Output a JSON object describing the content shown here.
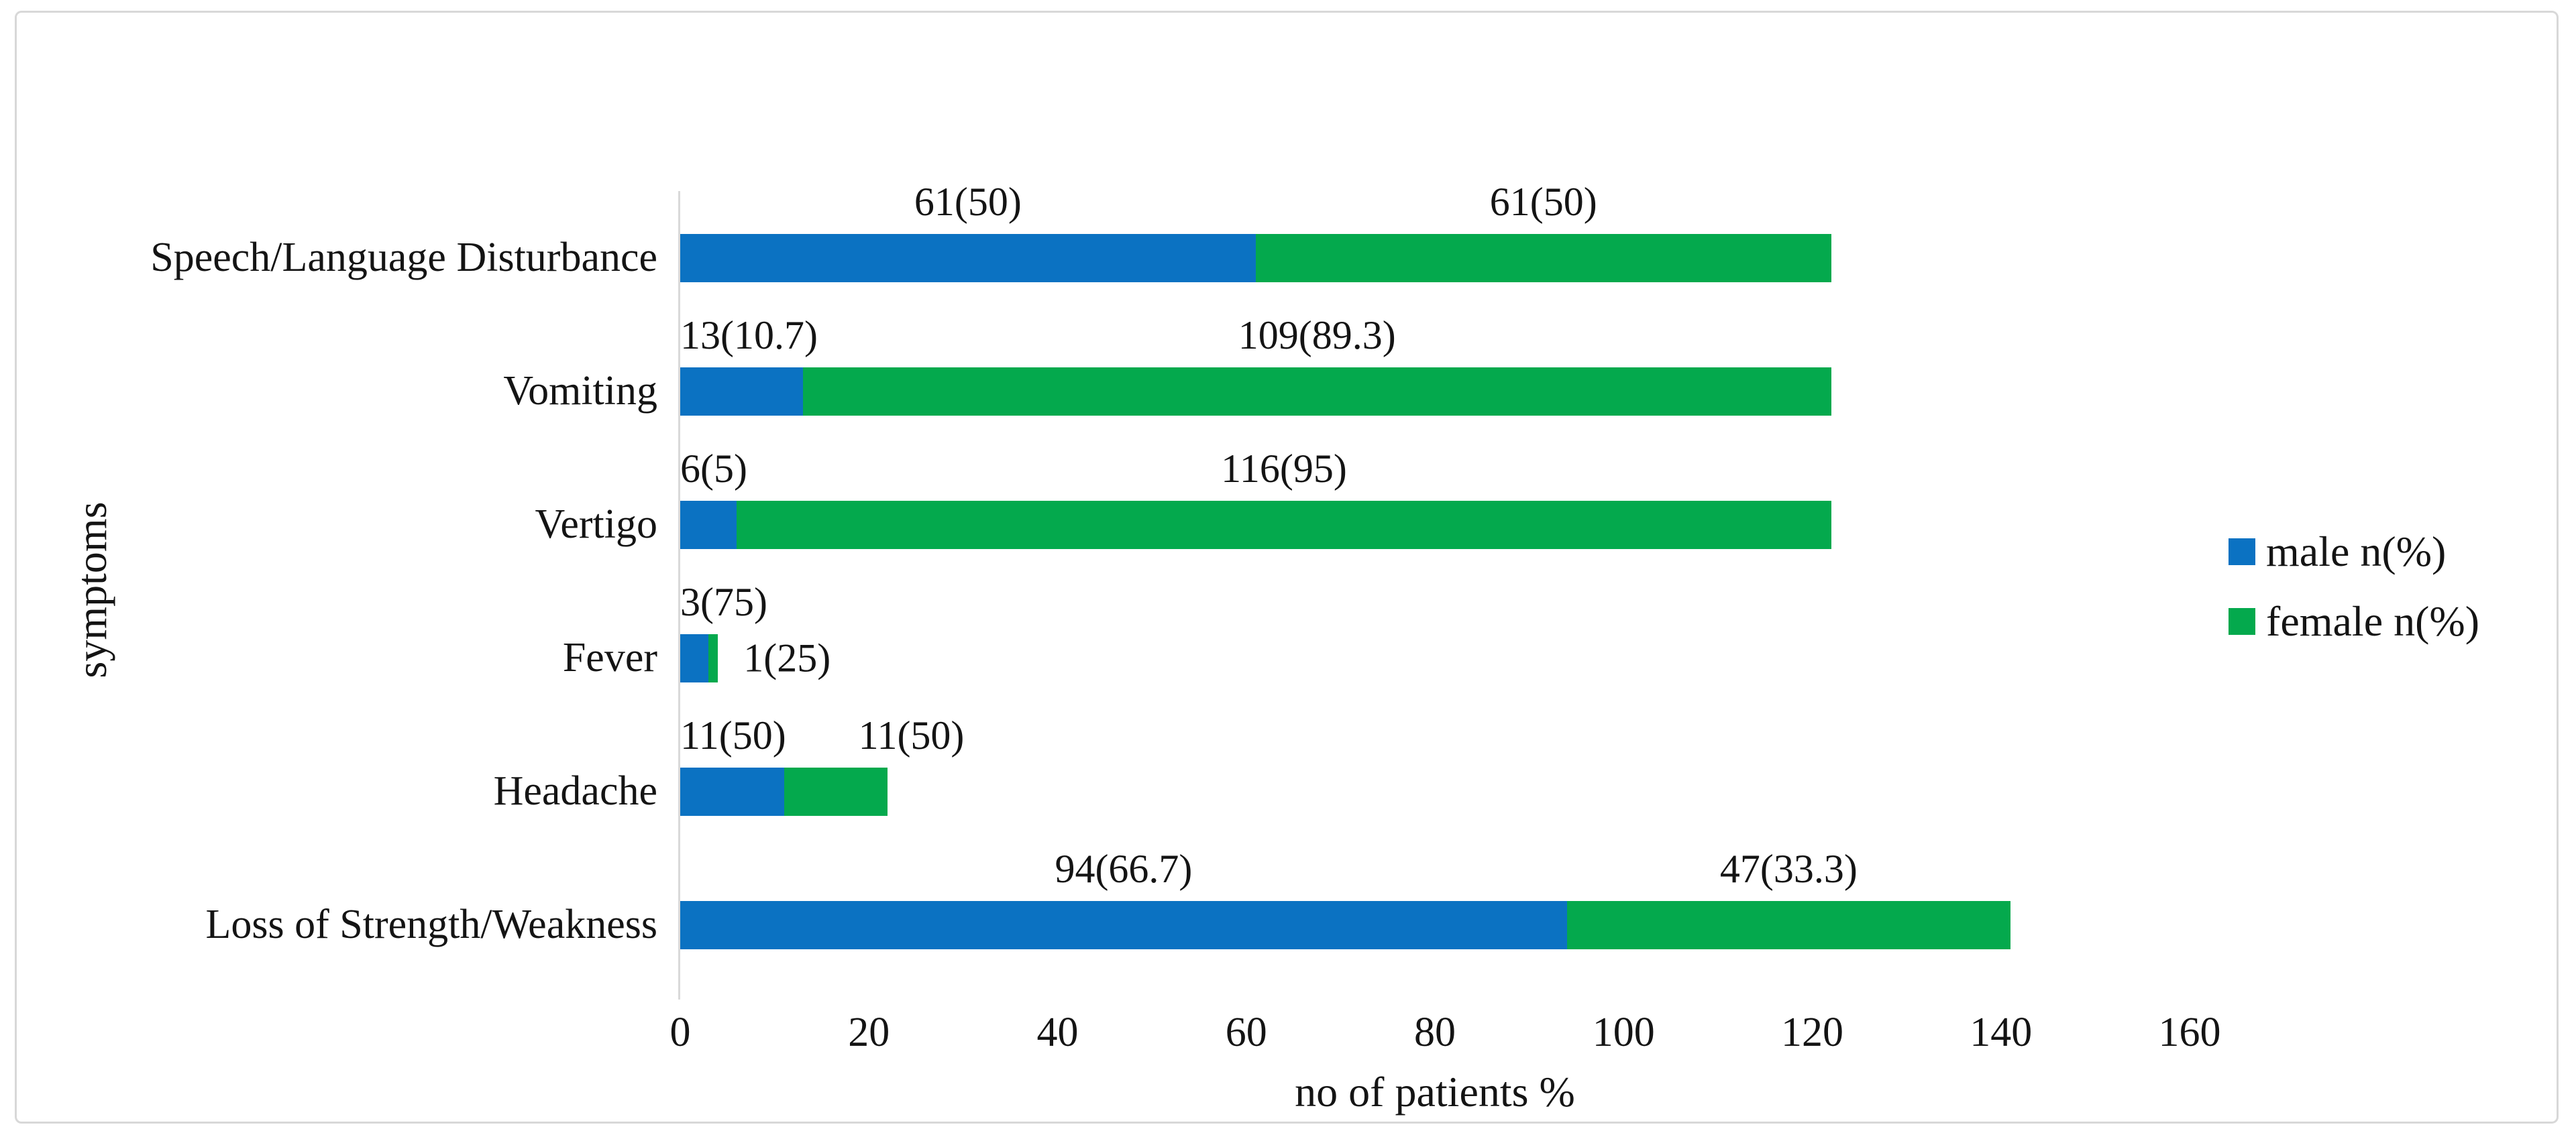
{
  "figure": {
    "background": "#ffffff",
    "border_color": "#d8d8d8"
  },
  "chart_data": {
    "type": "bar",
    "orientation": "horizontal",
    "stacked": true,
    "title": "",
    "xlabel": "no of patients %",
    "ylabel": "symptoms",
    "xlim": [
      0,
      160
    ],
    "x_ticks": [
      0,
      20,
      40,
      60,
      80,
      100,
      120,
      140,
      160
    ],
    "grid": false,
    "legend_position": "middle-right",
    "axis_line_color": "#d9d9d9",
    "text_color": "#141414",
    "categories": [
      "Speech/Language Disturbance",
      "Vomiting",
      "Vertigo",
      "Fever",
      "Headache",
      "Loss of Strength/Weakness"
    ],
    "series": [
      {
        "name": "male n(%)",
        "color": "#0b72c2",
        "values": [
          61,
          13,
          6,
          3,
          11,
          94
        ],
        "data_labels": [
          "61(50)",
          "13(10.7)",
          "6(5)",
          "3(75)",
          "11(50)",
          "94(66.7)"
        ]
      },
      {
        "name": "female n(%)",
        "color": "#04a94d",
        "values": [
          61,
          109,
          116,
          1,
          11,
          47
        ],
        "data_labels": [
          "61(50)",
          "109(89.3)",
          "116(95)",
          "1(25)",
          "11(50)",
          "47(33.3)"
        ]
      }
    ]
  }
}
